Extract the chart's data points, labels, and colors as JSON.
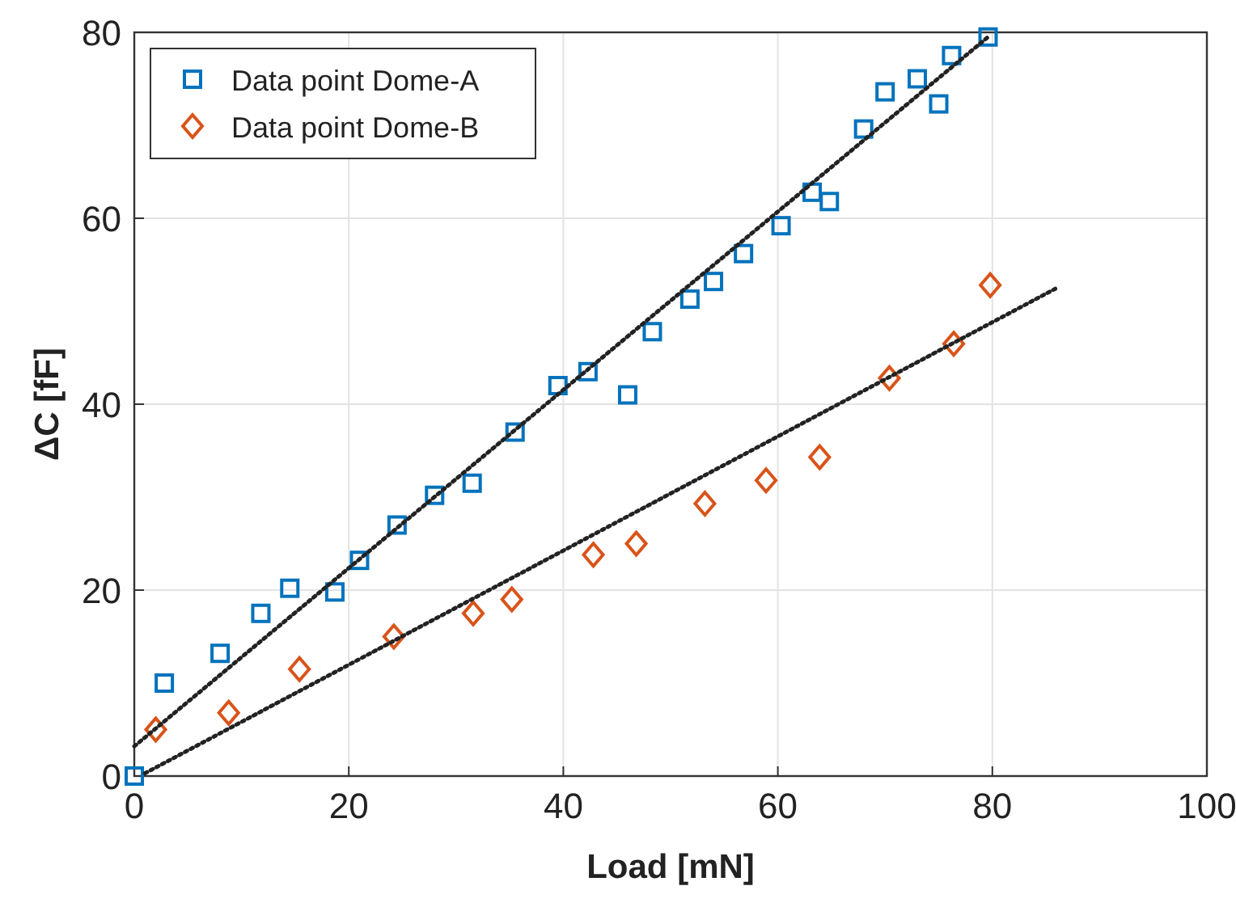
{
  "chart_data": {
    "type": "scatter",
    "xlabel": "Load [mN]",
    "ylabel": "ΔC [fF]",
    "xlim": [
      0,
      100
    ],
    "ylim": [
      0,
      80
    ],
    "xticks": [
      0,
      20,
      40,
      60,
      80,
      100
    ],
    "yticks": [
      0,
      20,
      40,
      60,
      80
    ],
    "grid": true,
    "legend": "top left",
    "series": [
      {
        "name": "Data point Dome-A",
        "color": "#0072bd",
        "marker": "square",
        "x": [
          0,
          2.8,
          8,
          11.8,
          14.5,
          18.7,
          21,
          24.5,
          28,
          31.5,
          35.5,
          39.5,
          42.3,
          46,
          48.3,
          51.8,
          54,
          56.8,
          60.3,
          63.2,
          64.8,
          68,
          70,
          73,
          75,
          76.2,
          79.6
        ],
        "values": [
          0,
          10,
          13.2,
          17.5,
          20.2,
          19.8,
          23.2,
          27,
          30.2,
          31.5,
          37,
          42,
          43.5,
          41,
          47.8,
          51.3,
          53.2,
          56.2,
          59.2,
          62.8,
          61.8,
          69.6,
          73.6,
          75,
          72.3,
          77.5,
          79.5
        ]
      },
      {
        "name": "Data point Dome-B",
        "color": "#d95319",
        "marker": "diamond",
        "x": [
          2,
          8.8,
          15.4,
          24.2,
          31.6,
          35.2,
          42.8,
          46.8,
          53.2,
          58.9,
          63.9,
          70.4,
          76.4,
          79.8
        ],
        "values": [
          5,
          6.8,
          11.5,
          15,
          17.5,
          19,
          23.8,
          25,
          29.3,
          31.8,
          34.3,
          42.8,
          46.5,
          52.8
        ]
      },
      {
        "type": "line",
        "color": "#222222",
        "line_style": "dotted",
        "marker": "none",
        "x": [
          0,
          79.6
        ],
        "values": [
          3.2,
          79.5
        ]
      },
      {
        "type": "line",
        "color": "#222222",
        "line_style": "dotted",
        "marker": "none",
        "x": [
          1,
          86
        ],
        "values": [
          0.3,
          52.5
        ]
      }
    ]
  }
}
